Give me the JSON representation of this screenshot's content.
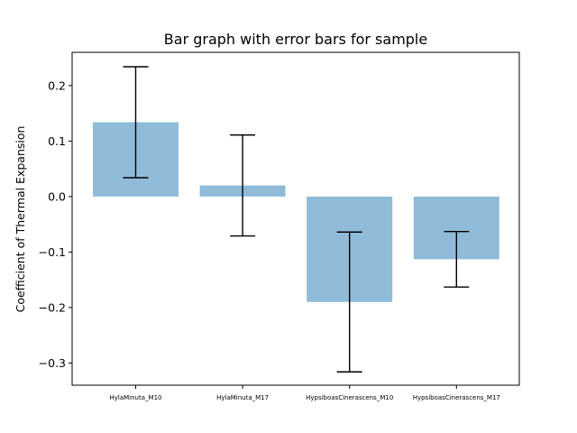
{
  "chart_data": {
    "type": "bar",
    "title": "Bar graph with error bars for sample",
    "xlabel": "",
    "ylabel": "Coefficient of Thermal Expansion",
    "categories": [
      "HylaMinuta_M10",
      "HylaMinuta_M17",
      "HypsiboasCinerascens_M10",
      "HypsiboasCinerascens_M17"
    ],
    "values": [
      0.134,
      0.02,
      -0.19,
      -0.113
    ],
    "error": [
      0.1,
      0.091,
      0.126,
      0.05
    ],
    "ylim": [
      -0.34,
      0.26
    ],
    "yticks": [
      -0.3,
      -0.2,
      -0.1,
      0.0,
      0.1,
      0.2
    ],
    "ytick_labels": [
      "−0.3",
      "−0.2",
      "−0.1",
      "0.0",
      "0.1",
      "0.2"
    ],
    "bar_color": "#1f77b4",
    "bar_alpha": 0.5,
    "grid": false,
    "legend": false
  }
}
